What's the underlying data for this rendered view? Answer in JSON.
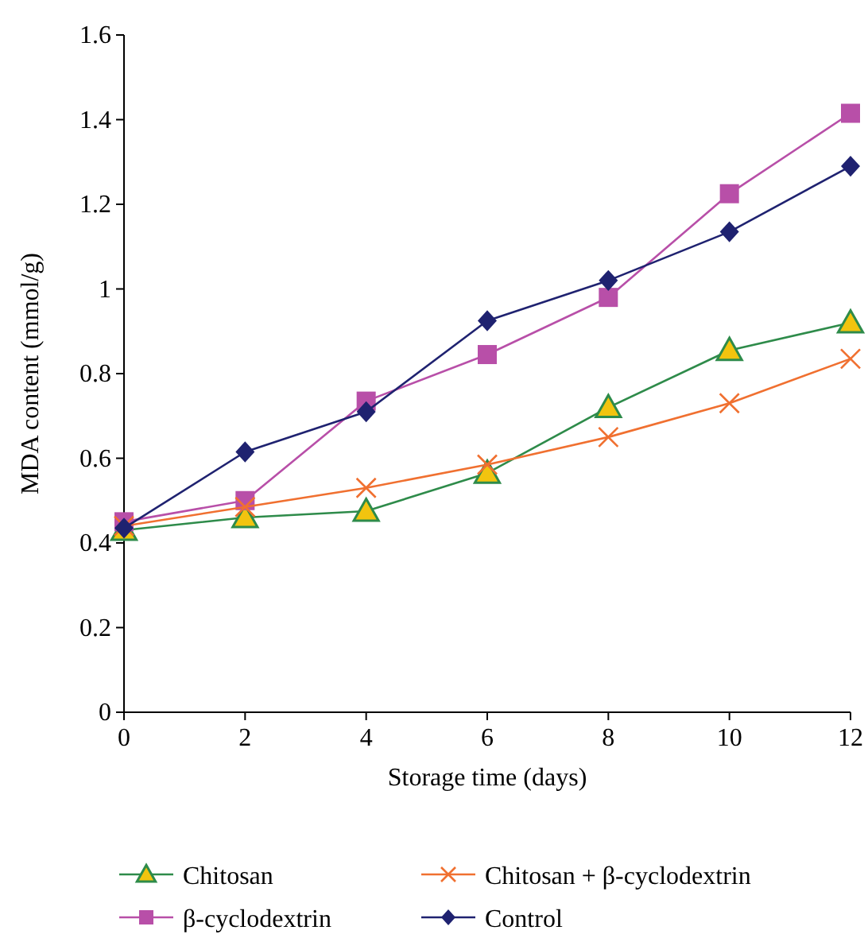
{
  "chart_data": {
    "type": "line",
    "xlabel": "Storage time (days)",
    "ylabel": "MDA content (mmol/g)",
    "x": [
      0,
      2,
      4,
      6,
      8,
      10,
      12
    ],
    "xlim": [
      0,
      12
    ],
    "xticks": [
      0,
      2,
      4,
      6,
      8,
      10,
      12
    ],
    "ylim": [
      0,
      1.6
    ],
    "yticks": [
      0,
      0.2,
      0.4,
      0.6,
      0.8,
      1,
      1.2,
      1.4,
      1.6
    ],
    "grid": false,
    "legend": "bottom",
    "series": [
      {
        "name": "Chitosan",
        "color": "#2e8b4a",
        "marker": "triangle",
        "values": [
          0.43,
          0.46,
          0.475,
          0.565,
          0.72,
          0.855,
          0.92
        ]
      },
      {
        "name": "β-cyclodextrin",
        "color": "#b84fa8",
        "marker": "square",
        "values": [
          0.45,
          0.5,
          0.735,
          0.845,
          0.98,
          1.225,
          1.415
        ]
      },
      {
        "name": "Chitosan + β-cyclodextrin",
        "color": "#f07030",
        "marker": "cross",
        "values": [
          0.44,
          0.485,
          0.53,
          0.585,
          0.65,
          0.73,
          0.835
        ]
      },
      {
        "name": "Control",
        "color": "#1f2270",
        "marker": "diamond",
        "values": [
          0.435,
          0.615,
          0.71,
          0.925,
          1.02,
          1.135,
          1.29
        ]
      }
    ]
  }
}
